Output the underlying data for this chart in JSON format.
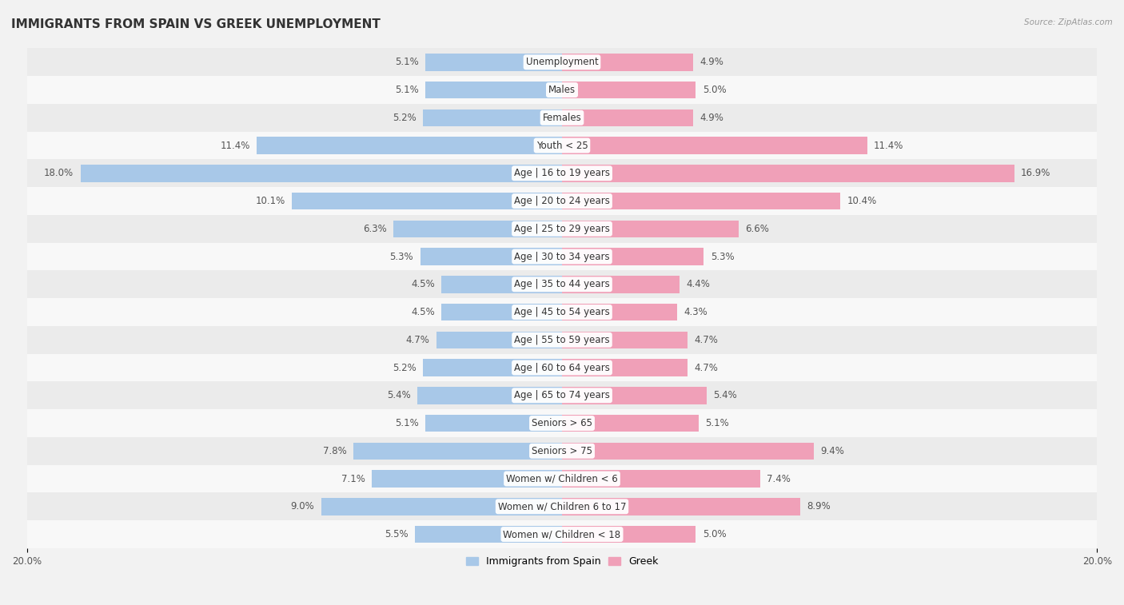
{
  "title": "IMMIGRANTS FROM SPAIN VS GREEK UNEMPLOYMENT",
  "source": "Source: ZipAtlas.com",
  "categories": [
    "Unemployment",
    "Males",
    "Females",
    "Youth < 25",
    "Age | 16 to 19 years",
    "Age | 20 to 24 years",
    "Age | 25 to 29 years",
    "Age | 30 to 34 years",
    "Age | 35 to 44 years",
    "Age | 45 to 54 years",
    "Age | 55 to 59 years",
    "Age | 60 to 64 years",
    "Age | 65 to 74 years",
    "Seniors > 65",
    "Seniors > 75",
    "Women w/ Children < 6",
    "Women w/ Children 6 to 17",
    "Women w/ Children < 18"
  ],
  "spain_values": [
    5.1,
    5.1,
    5.2,
    11.4,
    18.0,
    10.1,
    6.3,
    5.3,
    4.5,
    4.5,
    4.7,
    5.2,
    5.4,
    5.1,
    7.8,
    7.1,
    9.0,
    5.5
  ],
  "greek_values": [
    4.9,
    5.0,
    4.9,
    11.4,
    16.9,
    10.4,
    6.6,
    5.3,
    4.4,
    4.3,
    4.7,
    4.7,
    5.4,
    5.1,
    9.4,
    7.4,
    8.9,
    5.0
  ],
  "spain_color": "#a8c8e8",
  "greek_color": "#f0a0b8",
  "max_val": 20.0,
  "bg_color": "#f2f2f2",
  "row_bg_odd": "#ebebeb",
  "row_bg_even": "#f8f8f8",
  "bar_height": 0.62,
  "title_fontsize": 11,
  "label_fontsize": 8.5,
  "tick_fontsize": 8.5,
  "category_fontsize": 8.5
}
